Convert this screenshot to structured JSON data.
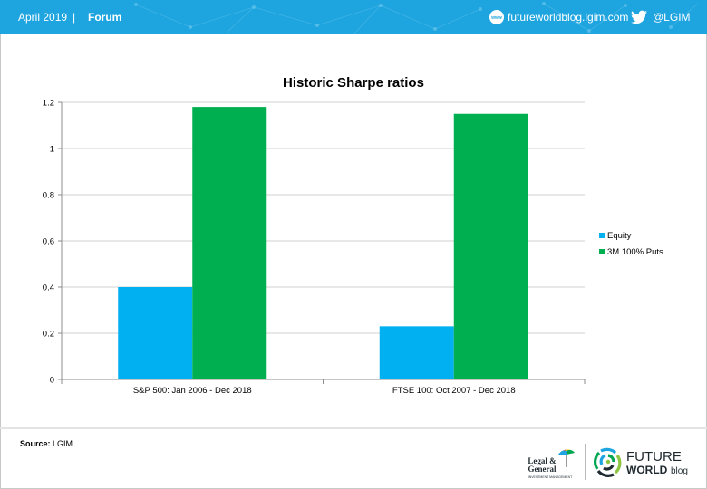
{
  "header": {
    "date": "April 2019",
    "separator": "|",
    "section": "Forum",
    "website": "futureworldblog.lgim.com",
    "twitter_handle": "@LGIM",
    "background_color": "#1ea4df"
  },
  "icons": {
    "website": "www-globe-icon",
    "twitter": "twitter-bird-icon"
  },
  "chart_data": {
    "type": "bar",
    "title": "Historic Sharpe ratios",
    "xlabel": "",
    "ylabel": "",
    "categories": [
      "S&P 500: Jan 2006 - Dec 2018",
      "FTSE 100: Oct 2007 - Dec 2018"
    ],
    "series": [
      {
        "name": "Equity",
        "values": [
          0.4,
          0.23
        ],
        "color": "#00b0f0"
      },
      {
        "name": "3M 100% Puts",
        "values": [
          1.18,
          1.15
        ],
        "color": "#00b050"
      }
    ],
    "ylim": [
      0,
      1.2
    ],
    "yticks": [
      "0",
      "0.2",
      "0.4",
      "0.6",
      "0.8",
      "1",
      "1.2"
    ],
    "grid": true,
    "legend_position": "right"
  },
  "footer": {
    "source_label": "Source:",
    "source_value": "LGIM",
    "legal_general_logo_text": [
      "Legal &",
      "General",
      "INVESTMENT MANAGEMENT"
    ],
    "future_world_logo_text": [
      "FUTURE",
      "WORLD",
      "blog"
    ],
    "brand_colors": {
      "green": "#00a651",
      "blue": "#1ea4df",
      "dark": "#1f2a30"
    }
  }
}
